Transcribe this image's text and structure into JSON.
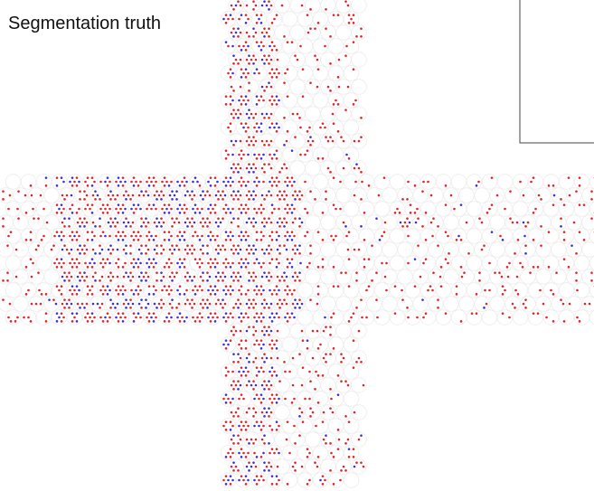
{
  "label": {
    "text": "Segmentation truth"
  }
}
